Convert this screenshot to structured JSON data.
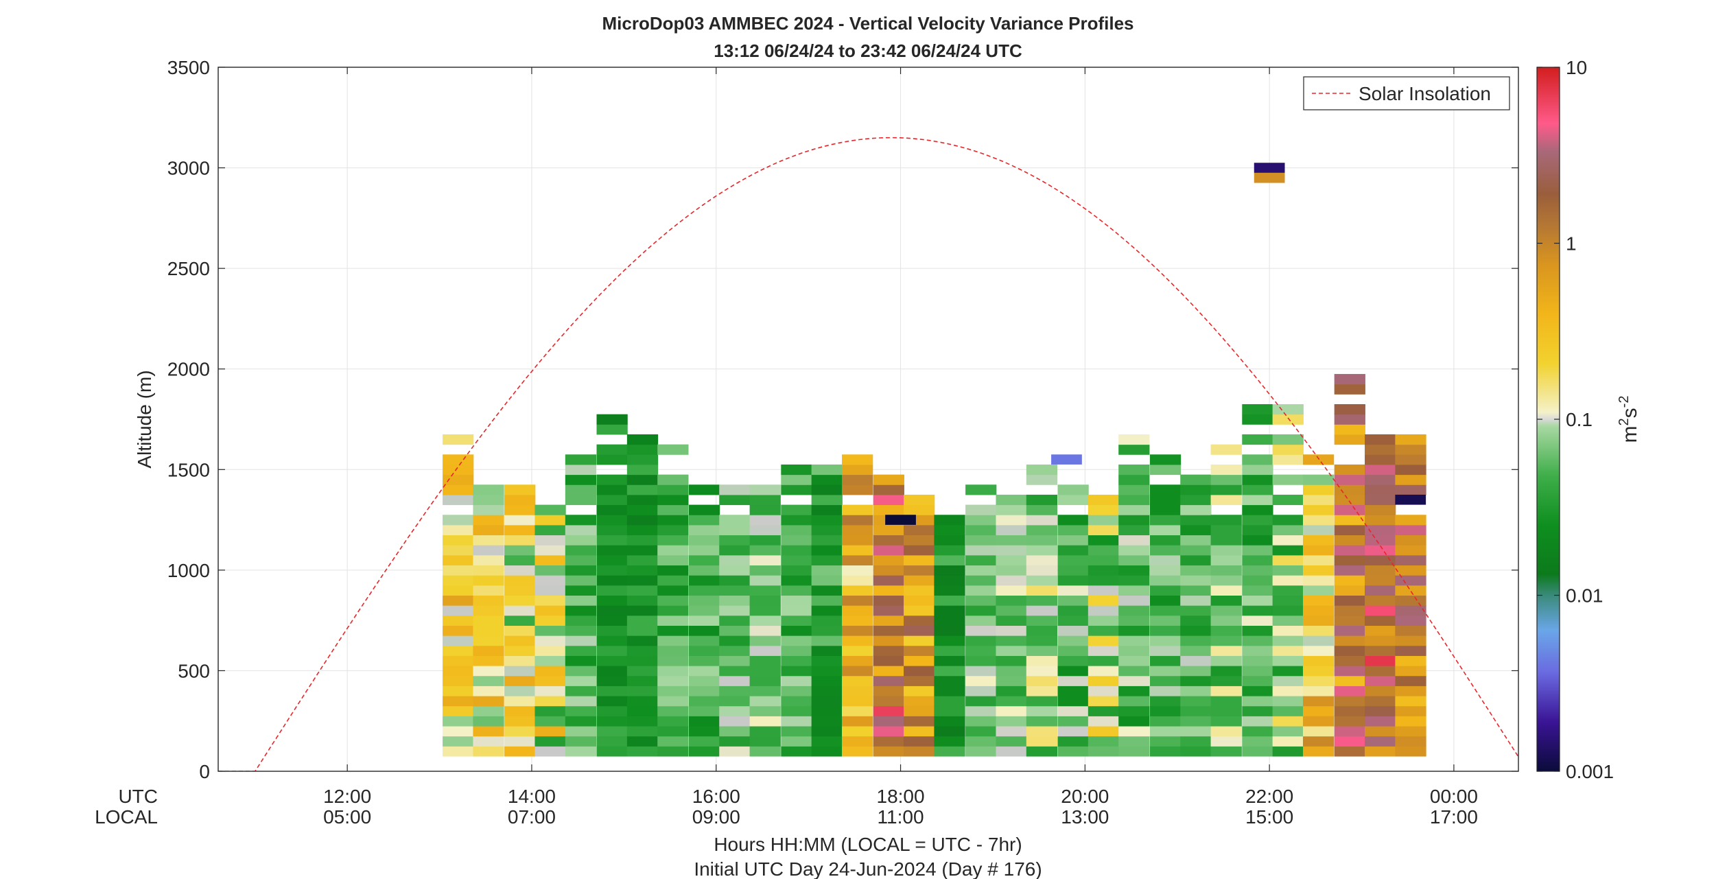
{
  "chart_data": {
    "type": "heatmap",
    "title": "MicroDop03 AMMBEC 2024 - Vertical Velocity Variance Profiles",
    "subtitle": "13:12 06/24/24 to 23:42 06/24/24  UTC",
    "ylabel": "Altitude (m)",
    "xlabel": "Hours HH:MM  (LOCAL = UTC - 7hr)",
    "xlabel2": "Initial UTC Day 24-Jun-2024 (Day # 176)",
    "x_row_label_utc": "UTC",
    "x_row_label_local": "LOCAL",
    "xlim_hours": [
      10.6,
      24.7
    ],
    "ylim": [
      0,
      3500
    ],
    "grid": true,
    "x_ticks": [
      {
        "h": 12,
        "utc": "12:00",
        "local": "05:00"
      },
      {
        "h": 14,
        "utc": "14:00",
        "local": "07:00"
      },
      {
        "h": 16,
        "utc": "16:00",
        "local": "09:00"
      },
      {
        "h": 18,
        "utc": "18:00",
        "local": "11:00"
      },
      {
        "h": 20,
        "utc": "20:00",
        "local": "13:00"
      },
      {
        "h": 22,
        "utc": "22:00",
        "local": "15:00"
      },
      {
        "h": 24,
        "utc": "00:00",
        "local": "17:00"
      }
    ],
    "y_ticks": [
      {
        "v": 0,
        "label": "0"
      },
      {
        "v": 500,
        "label": "500"
      },
      {
        "v": 1000,
        "label": "1000"
      },
      {
        "v": 1500,
        "label": "1500"
      },
      {
        "v": 2000,
        "label": "2000"
      },
      {
        "v": 2500,
        "label": "2500"
      },
      {
        "v": 3000,
        "label": "3000"
      },
      {
        "v": 3500,
        "label": "3500"
      }
    ],
    "legend": {
      "label": "Solar Insolation",
      "placement": "top-right"
    },
    "solar_insolation": {
      "start_h": 11.0,
      "end_h": 24.8,
      "peak_h": 19.0,
      "peak_alt": 3150
    },
    "colorbar": {
      "scale": "log",
      "range": [
        0.001,
        10
      ],
      "unit_base": "m",
      "unit_exp1": "2",
      "unit_mid": "s",
      "unit_exp2": "-2",
      "ticks": [
        {
          "v": 0.001,
          "label": "0.001"
        },
        {
          "v": 0.01,
          "label": "0.01"
        },
        {
          "v": 0.1,
          "label": "0.1"
        },
        {
          "v": 1,
          "label": "1"
        },
        {
          "v": 10,
          "label": "10"
        }
      ]
    },
    "bin_height_m": 50,
    "profile_width_h": 0.333,
    "profiles": [
      {
        "h": 13.2,
        "top": 1650,
        "base": 0.3,
        "amp": 0.8
      },
      {
        "h": 13.53,
        "top": 1400,
        "base": 0.25,
        "amp": 0.9
      },
      {
        "h": 13.87,
        "top": 1400,
        "base": 0.15,
        "amp": 0.9
      },
      {
        "h": 14.2,
        "top": 1300,
        "base": 0.08,
        "amp": 1.0
      },
      {
        "h": 14.53,
        "top": 1550,
        "base": -0.3,
        "amp": 0.6
      },
      {
        "h": 14.87,
        "top": 1780,
        "base": -0.6,
        "amp": 0.4
      },
      {
        "h": 15.2,
        "top": 1650,
        "base": -0.6,
        "amp": 0.4
      },
      {
        "h": 15.53,
        "top": 1600,
        "base": -0.4,
        "amp": 0.5
      },
      {
        "h": 15.87,
        "top": 1400,
        "base": -0.4,
        "amp": 0.5
      },
      {
        "h": 16.2,
        "top": 1400,
        "base": -0.25,
        "amp": 0.5
      },
      {
        "h": 16.53,
        "top": 1400,
        "base": -0.2,
        "amp": 0.5
      },
      {
        "h": 16.87,
        "top": 1500,
        "base": -0.35,
        "amp": 0.5
      },
      {
        "h": 17.2,
        "top": 1500,
        "base": -0.5,
        "amp": 0.5
      },
      {
        "h": 17.53,
        "top": 1550,
        "base": 0.6,
        "amp": 0.9
      },
      {
        "h": 17.87,
        "top": 1450,
        "base": 1.2,
        "amp": 1.1
      },
      {
        "h": 18.2,
        "top": 1400,
        "base": 0.9,
        "amp": 1.0
      },
      {
        "h": 18.53,
        "top": 1300,
        "base": -0.6,
        "amp": 0.5
      },
      {
        "h": 18.87,
        "top": 1400,
        "base": -0.2,
        "amp": 0.5
      },
      {
        "h": 19.2,
        "top": 1350,
        "base": -0.2,
        "amp": 0.5
      },
      {
        "h": 19.53,
        "top": 1550,
        "base": -0.15,
        "amp": 0.6
      },
      {
        "h": 19.87,
        "top": 1400,
        "base": -0.3,
        "amp": 0.6
      },
      {
        "h": 20.2,
        "top": 1350,
        "base": -0.1,
        "amp": 0.9
      },
      {
        "h": 20.53,
        "top": 1650,
        "base": -0.3,
        "amp": 0.6
      },
      {
        "h": 20.87,
        "top": 1550,
        "base": -0.35,
        "amp": 0.5
      },
      {
        "h": 21.2,
        "top": 1450,
        "base": -0.3,
        "amp": 0.5
      },
      {
        "h": 21.53,
        "top": 1600,
        "base": -0.2,
        "amp": 0.6
      },
      {
        "h": 21.87,
        "top": 1800,
        "base": -0.3,
        "amp": 0.6
      },
      {
        "h": 22.2,
        "top": 1800,
        "base": -0.15,
        "amp": 0.7
      },
      {
        "h": 22.53,
        "top": 1550,
        "base": 0.4,
        "amp": 1.0
      },
      {
        "h": 22.87,
        "top": 1950,
        "base": 1.1,
        "amp": 1.1
      },
      {
        "h": 23.2,
        "top": 1700,
        "base": 1.3,
        "amp": 1.0
      },
      {
        "h": 23.53,
        "top": 1650,
        "base": 1.1,
        "amp": 1.0
      }
    ],
    "isolated_cells": [
      {
        "h": 22.0,
        "alt": 3000,
        "v": 0.0015
      },
      {
        "h": 22.0,
        "alt": 2950,
        "v": 0.8
      },
      {
        "h": 23.53,
        "alt": 1350,
        "v": 0.0012
      },
      {
        "h": 18.0,
        "alt": 1250,
        "v": 0.001
      },
      {
        "h": 19.8,
        "alt": 1550,
        "v": 0.004
      }
    ]
  }
}
